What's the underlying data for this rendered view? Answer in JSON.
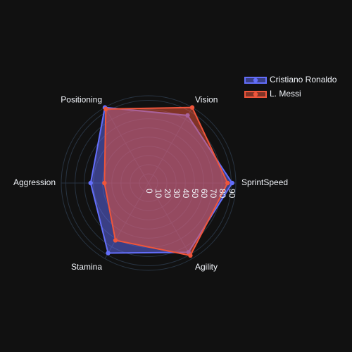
{
  "chart_data": {
    "type": "radar",
    "categories": [
      "SprintSpeed",
      "Vision",
      "Positioning",
      "Aggression",
      "Stamina",
      "Agility"
    ],
    "radial_ticks": [
      "0",
      "10",
      "20",
      "30",
      "40",
      "50",
      "60",
      "70",
      "80",
      "90"
    ],
    "rlim": [
      0,
      95
    ],
    "series": [
      {
        "name": "Cristiano Ronaldo",
        "values": [
          91,
          85,
          95,
          63,
          88,
          87
        ],
        "color": "#636efa"
      },
      {
        "name": "L. Messi",
        "values": [
          86,
          95,
          93,
          48,
          72,
          91
        ],
        "color": "#ef553b"
      }
    ],
    "legend_position": "top-right"
  },
  "colors": {
    "background": "#111111",
    "grid": "#283442",
    "text": "#f2f5fa"
  }
}
